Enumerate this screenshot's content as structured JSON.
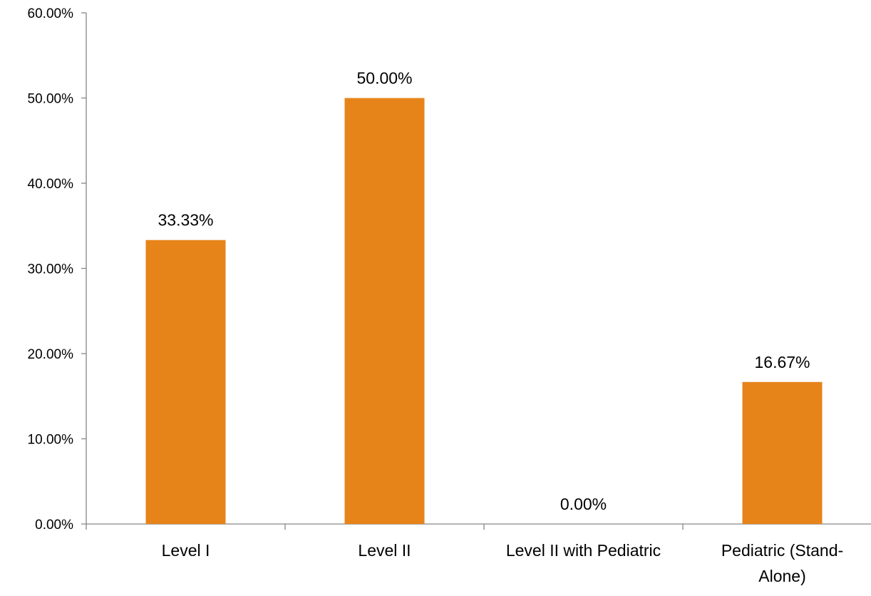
{
  "chart_data": {
    "type": "bar",
    "title": "",
    "xlabel": "",
    "ylabel": "",
    "categories": [
      "Level I",
      "Level II",
      "Level II with Pediatric",
      "Pediatric (Stand-Alone)"
    ],
    "category_lines": [
      [
        "Level I"
      ],
      [
        "Level II"
      ],
      [
        "Level II with Pediatric"
      ],
      [
        "Pediatric (Stand-",
        "Alone)"
      ]
    ],
    "values": [
      33.33,
      50.0,
      0.0,
      16.67
    ],
    "data_labels": [
      "33.33%",
      "50.00%",
      "0.00%",
      "16.67%"
    ],
    "ylim": [
      0,
      60
    ],
    "yticks": [
      0,
      10,
      20,
      30,
      40,
      50,
      60
    ],
    "ytick_labels": [
      "0.00%",
      "10.00%",
      "20.00%",
      "30.00%",
      "40.00%",
      "50.00%",
      "60.00%"
    ],
    "bar_color": "#E6841A",
    "axis_color": "#868686",
    "grid": false,
    "legend": "none"
  }
}
